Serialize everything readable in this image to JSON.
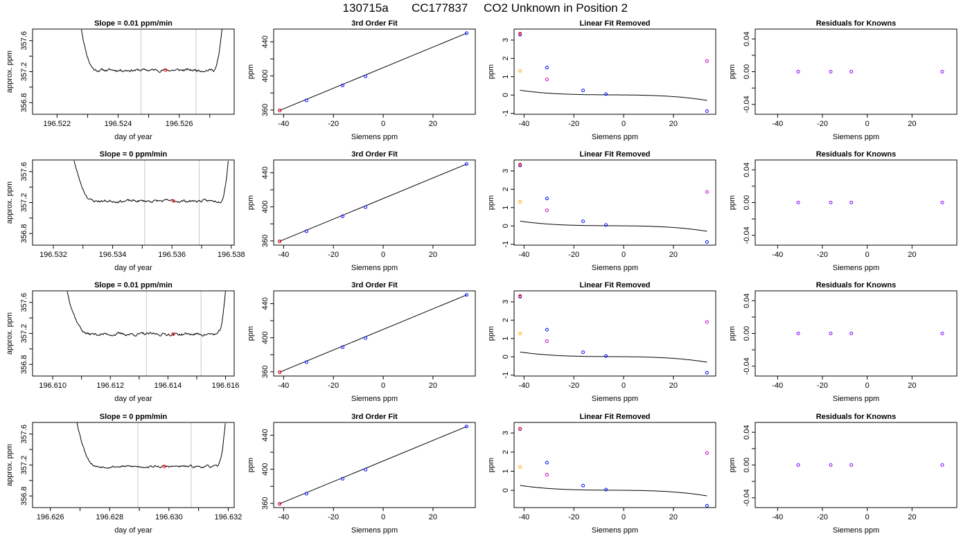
{
  "figure": {
    "title_parts": [
      "130715a",
      "CC177837",
      "CO2 Unknown in Position  2"
    ]
  },
  "colors": {
    "line": "#000000",
    "marker_vline": "#c8c8c8",
    "known": "#0000ff",
    "unknown": "#ff0000",
    "linear_resid_unknown": "#ffa500",
    "linear_resid_known": "#cc00cc",
    "residual_known": "#8000ff"
  },
  "chart_data": [
    {
      "type": "line",
      "panel": "trace",
      "row": 0,
      "title": "Slope =  0.01  ppm/min",
      "xlabel": "day of year",
      "ylabel": "approx. ppm",
      "xlim": [
        196.5212,
        196.5278
      ],
      "ylim": [
        356.65,
        357.75
      ],
      "xticks": [
        196.522,
        196.523,
        196.524,
        196.525,
        196.526,
        196.527
      ],
      "xtick_labels": [
        "196.522",
        "",
        "196.524",
        "",
        "196.526",
        ""
      ],
      "yticks": [
        356.8,
        357.0,
        357.2,
        357.4,
        357.6
      ],
      "ytick_labels": [
        "356.8",
        "",
        "357.2",
        "",
        "357.6"
      ],
      "trace": {
        "x_start": 196.5228,
        "x_flat_start": 196.5233,
        "x_flat_end": 196.5271,
        "x_end": 196.5274,
        "start_level": 357.75,
        "level": 357.22,
        "noise": 0.012,
        "seed": 11
      },
      "vlines": [
        196.52475,
        196.52655
      ],
      "unknown_point": {
        "x": 196.52555,
        "y": 357.22
      }
    },
    {
      "type": "scatter",
      "panel": "fit",
      "row": 0,
      "title": "3rd Order Fit",
      "xlabel": "Siemens ppm",
      "ylabel": "ppm",
      "xlim": [
        -44,
        37
      ],
      "ylim": [
        355,
        455
      ],
      "xticks": [
        -40,
        -20,
        0,
        20
      ],
      "xtick_labels": [
        "-40",
        "-20",
        "0",
        "20"
      ],
      "yticks": [
        360,
        380,
        400,
        420,
        440
      ],
      "ytick_labels": [
        "360",
        "",
        "400",
        "",
        "440"
      ],
      "knowns": [
        {
          "x": -41.6,
          "y": 359.5
        },
        {
          "x": -30.8,
          "y": 371.3
        },
        {
          "x": -16.3,
          "y": 388.9
        },
        {
          "x": -7.1,
          "y": 399.5
        },
        {
          "x": 33.5,
          "y": 450.2
        }
      ],
      "unknown": {
        "x": -41.6,
        "y": 359.4
      }
    },
    {
      "type": "scatter",
      "panel": "linear_removed",
      "row": 0,
      "title": "Linear Fit Removed",
      "xlabel": "Siemens ppm",
      "ylabel": "ppm",
      "xlim": [
        -44,
        37
      ],
      "ylim": [
        -1.05,
        3.6
      ],
      "xticks": [
        -40,
        -20,
        0,
        20
      ],
      "xtick_labels": [
        "-40",
        "-20",
        "0",
        "20"
      ],
      "yticks": [
        -1,
        0,
        1,
        2,
        3
      ],
      "ytick_labels": [
        "-1",
        "0",
        "1",
        "2",
        "3"
      ],
      "cubic": [
        0.005,
        -0.00113,
        -7.5e-05,
        -4.7e-06
      ],
      "knowns": [
        {
          "x": -41.6,
          "y": 3.3
        },
        {
          "x": -30.8,
          "y": 1.5
        },
        {
          "x": -16.3,
          "y": 0.25
        },
        {
          "x": -7.1,
          "y": 0.05
        },
        {
          "x": 33.5,
          "y": -0.88
        }
      ],
      "unknown": {
        "x": -41.6,
        "y": 3.35
      },
      "linear_resid_unknown": {
        "x": -41.6,
        "y": 1.32
      },
      "linear_resid_knowns": [
        {
          "x": -30.8,
          "y": 0.85
        },
        {
          "x": 33.5,
          "y": 1.85
        }
      ]
    },
    {
      "type": "scatter",
      "panel": "residuals",
      "row": 0,
      "title": "Residuals for Knowns",
      "xlabel": "Siemens ppm",
      "ylabel": "ppm",
      "xlim": [
        -50,
        40
      ],
      "ylim": [
        -0.052,
        0.052
      ],
      "xticks": [
        -40,
        -20,
        0,
        20
      ],
      "xtick_labels": [
        "-40",
        "-20",
        "0",
        "20"
      ],
      "yticks": [
        -0.04,
        0.0,
        0.04
      ],
      "ytick_labels": [
        "-0.04",
        "0.00",
        "0.04"
      ],
      "minor_yticks": [
        -0.02,
        0.02
      ],
      "knowns": [
        {
          "x": -30.8,
          "y": 0.0
        },
        {
          "x": -16.3,
          "y": 0.0
        },
        {
          "x": -7.1,
          "y": 0.0
        },
        {
          "x": 33.5,
          "y": 0.0
        }
      ]
    },
    {
      "type": "line",
      "panel": "trace",
      "row": 1,
      "title": "Slope =  0  ppm/min",
      "xlabel": "day of year",
      "ylabel": "approx. ppm",
      "xlim": [
        196.5313,
        196.5381
      ],
      "ylim": [
        356.65,
        357.75
      ],
      "xticks": [
        196.532,
        196.533,
        196.534,
        196.535,
        196.536,
        196.537,
        196.538
      ],
      "xtick_labels": [
        "196.532",
        "",
        "196.534",
        "",
        "196.536",
        "",
        "196.538"
      ],
      "yticks": [
        356.8,
        357.0,
        357.2,
        357.4,
        357.6
      ],
      "ytick_labels": [
        "356.8",
        "",
        "357.2",
        "",
        "357.6"
      ],
      "trace": {
        "x_start": 196.5327,
        "x_flat_start": 196.5334,
        "x_flat_end": 196.5376,
        "x_end": 196.5379,
        "start_level": 357.75,
        "level": 357.22,
        "noise": 0.012,
        "seed": 23
      },
      "vlines": [
        196.53508,
        196.53692
      ],
      "unknown_point": {
        "x": 196.53605,
        "y": 357.22
      }
    },
    {
      "type": "scatter",
      "panel": "fit",
      "row": 1,
      "title": "3rd Order Fit",
      "xlabel": "Siemens ppm",
      "ylabel": "ppm",
      "xlim": [
        -44,
        37
      ],
      "ylim": [
        355,
        455
      ],
      "xticks": [
        -40,
        -20,
        0,
        20
      ],
      "xtick_labels": [
        "-40",
        "-20",
        "0",
        "20"
      ],
      "yticks": [
        360,
        380,
        400,
        420,
        440
      ],
      "ytick_labels": [
        "360",
        "",
        "400",
        "",
        "440"
      ],
      "knowns": [
        {
          "x": -41.6,
          "y": 359.5
        },
        {
          "x": -30.8,
          "y": 371.3
        },
        {
          "x": -16.3,
          "y": 388.9
        },
        {
          "x": -7.1,
          "y": 399.5
        },
        {
          "x": 33.5,
          "y": 450.2
        }
      ],
      "unknown": {
        "x": -41.6,
        "y": 359.4
      }
    },
    {
      "type": "scatter",
      "panel": "linear_removed",
      "row": 1,
      "title": "Linear Fit Removed",
      "xlabel": "Siemens ppm",
      "ylabel": "ppm",
      "xlim": [
        -44,
        37
      ],
      "ylim": [
        -1.05,
        3.6
      ],
      "xticks": [
        -40,
        -20,
        0,
        20
      ],
      "xtick_labels": [
        "-40",
        "-20",
        "0",
        "20"
      ],
      "yticks": [
        -1,
        0,
        1,
        2,
        3
      ],
      "ytick_labels": [
        "-1",
        "0",
        "1",
        "2",
        "3"
      ],
      "cubic": [
        0.005,
        -0.00113,
        -7.5e-05,
        -4.7e-06
      ],
      "knowns": [
        {
          "x": -41.6,
          "y": 3.3
        },
        {
          "x": -30.8,
          "y": 1.5
        },
        {
          "x": -16.3,
          "y": 0.25
        },
        {
          "x": -7.1,
          "y": 0.05
        },
        {
          "x": 33.5,
          "y": -0.88
        }
      ],
      "unknown": {
        "x": -41.6,
        "y": 3.35
      },
      "linear_resid_unknown": {
        "x": -41.6,
        "y": 1.32
      },
      "linear_resid_knowns": [
        {
          "x": -30.8,
          "y": 0.85
        },
        {
          "x": 33.5,
          "y": 1.85
        }
      ]
    },
    {
      "type": "scatter",
      "panel": "residuals",
      "row": 1,
      "title": "Residuals for Knowns",
      "xlabel": "Siemens ppm",
      "ylabel": "ppm",
      "xlim": [
        -50,
        40
      ],
      "ylim": [
        -0.052,
        0.052
      ],
      "xticks": [
        -40,
        -20,
        0,
        20
      ],
      "xtick_labels": [
        "-40",
        "-20",
        "0",
        "20"
      ],
      "yticks": [
        -0.04,
        0.0,
        0.04
      ],
      "ytick_labels": [
        "-0.04",
        "0.00",
        "0.04"
      ],
      "minor_yticks": [
        -0.02,
        0.02
      ],
      "knowns": [
        {
          "x": -30.8,
          "y": 0.0
        },
        {
          "x": -16.3,
          "y": 0.0
        },
        {
          "x": -7.1,
          "y": 0.0
        },
        {
          "x": 33.5,
          "y": 0.0
        }
      ]
    },
    {
      "type": "line",
      "panel": "trace",
      "row": 2,
      "title": "Slope =  0.01  ppm/min",
      "xlabel": "day of year",
      "ylabel": "approx. ppm",
      "xlim": [
        196.6093,
        196.6163
      ],
      "ylim": [
        356.65,
        357.75
      ],
      "xticks": [
        196.61,
        196.611,
        196.612,
        196.613,
        196.614,
        196.615,
        196.616
      ],
      "xtick_labels": [
        "196.610",
        "",
        "196.612",
        "",
        "196.614",
        "",
        "196.616"
      ],
      "yticks": [
        356.8,
        357.0,
        357.2,
        357.4,
        357.6
      ],
      "ytick_labels": [
        "356.8",
        "",
        "357.2",
        "",
        "357.6"
      ],
      "trace": {
        "x_start": 196.6105,
        "x_flat_start": 196.6113,
        "x_flat_end": 196.6157,
        "x_end": 196.616,
        "start_level": 357.75,
        "level": 357.19,
        "noise": 0.013,
        "seed": 37
      },
      "vlines": [
        196.61325,
        196.61515
      ],
      "unknown_point": {
        "x": 196.61418,
        "y": 357.19
      }
    },
    {
      "type": "scatter",
      "panel": "fit",
      "row": 2,
      "title": "3rd Order Fit",
      "xlabel": "Siemens ppm",
      "ylabel": "ppm",
      "xlim": [
        -44,
        37
      ],
      "ylim": [
        355,
        455
      ],
      "xticks": [
        -40,
        -20,
        0,
        20
      ],
      "xtick_labels": [
        "-40",
        "-20",
        "0",
        "20"
      ],
      "yticks": [
        360,
        380,
        400,
        420,
        440
      ],
      "ytick_labels": [
        "360",
        "",
        "400",
        "",
        "440"
      ],
      "knowns": [
        {
          "x": -41.6,
          "y": 359.5
        },
        {
          "x": -30.8,
          "y": 371.3
        },
        {
          "x": -16.3,
          "y": 388.9
        },
        {
          "x": -7.1,
          "y": 399.5
        },
        {
          "x": 33.5,
          "y": 450.2
        }
      ],
      "unknown": {
        "x": -41.6,
        "y": 359.4
      }
    },
    {
      "type": "scatter",
      "panel": "linear_removed",
      "row": 2,
      "title": "Linear Fit Removed",
      "xlabel": "Siemens ppm",
      "ylabel": "ppm",
      "xlim": [
        -44,
        37
      ],
      "ylim": [
        -1.05,
        3.6
      ],
      "xticks": [
        -40,
        -20,
        0,
        20
      ],
      "xtick_labels": [
        "-40",
        "-20",
        "0",
        "20"
      ],
      "yticks": [
        -1,
        0,
        1,
        2,
        3
      ],
      "ytick_labels": [
        "-1",
        "0",
        "1",
        "2",
        "3"
      ],
      "cubic": [
        0.005,
        -0.00113,
        -7.5e-05,
        -4.7e-06
      ],
      "knowns": [
        {
          "x": -41.6,
          "y": 3.28
        },
        {
          "x": -30.8,
          "y": 1.48
        },
        {
          "x": -16.3,
          "y": 0.25
        },
        {
          "x": -7.1,
          "y": 0.04
        },
        {
          "x": 33.5,
          "y": -0.87
        }
      ],
      "unknown": {
        "x": -41.6,
        "y": 3.32
      },
      "linear_resid_unknown": {
        "x": -41.6,
        "y": 1.27
      },
      "linear_resid_knowns": [
        {
          "x": -30.8,
          "y": 0.85
        },
        {
          "x": 33.5,
          "y": 1.9
        }
      ]
    },
    {
      "type": "scatter",
      "panel": "residuals",
      "row": 2,
      "title": "Residuals for Knowns",
      "xlabel": "Siemens ppm",
      "ylabel": "ppm",
      "xlim": [
        -50,
        40
      ],
      "ylim": [
        -0.052,
        0.052
      ],
      "xticks": [
        -40,
        -20,
        0,
        20
      ],
      "xtick_labels": [
        "-40",
        "-20",
        "0",
        "20"
      ],
      "yticks": [
        -0.04,
        0.0,
        0.04
      ],
      "ytick_labels": [
        "-0.04",
        "0.00",
        "0.04"
      ],
      "minor_yticks": [
        -0.02,
        0.02
      ],
      "knowns": [
        {
          "x": -30.8,
          "y": 0.0
        },
        {
          "x": -16.3,
          "y": 0.0
        },
        {
          "x": -7.1,
          "y": 0.0
        },
        {
          "x": 33.5,
          "y": 0.0
        }
      ]
    },
    {
      "type": "line",
      "panel": "trace",
      "row": 3,
      "title": "Slope =  0  ppm/min",
      "xlabel": "day of year",
      "ylabel": "approx. ppm",
      "xlim": [
        196.6254,
        196.6322
      ],
      "ylim": [
        356.65,
        357.75
      ],
      "xticks": [
        196.626,
        196.627,
        196.628,
        196.629,
        196.63,
        196.631,
        196.632
      ],
      "xtick_labels": [
        "196.626",
        "",
        "196.628",
        "",
        "196.630",
        "",
        "196.632"
      ],
      "yticks": [
        356.8,
        357.0,
        357.2,
        357.4,
        357.6
      ],
      "ytick_labels": [
        "356.8",
        "",
        "357.2",
        "",
        "357.6"
      ],
      "trace": {
        "x_start": 196.6269,
        "x_flat_start": 196.6276,
        "x_flat_end": 196.6316,
        "x_end": 196.6319,
        "start_level": 357.75,
        "level": 357.18,
        "noise": 0.01,
        "seed": 53
      },
      "vlines": [
        196.62895,
        196.63075
      ],
      "unknown_point": {
        "x": 196.62985,
        "y": 357.18
      }
    },
    {
      "type": "scatter",
      "panel": "fit",
      "row": 3,
      "title": "3rd Order Fit",
      "xlabel": "Siemens ppm",
      "ylabel": "ppm",
      "xlim": [
        -44,
        37
      ],
      "ylim": [
        355,
        455
      ],
      "xticks": [
        -40,
        -20,
        0,
        20
      ],
      "xtick_labels": [
        "-40",
        "-20",
        "0",
        "20"
      ],
      "yticks": [
        360,
        380,
        400,
        420,
        440
      ],
      "ytick_labels": [
        "360",
        "",
        "400",
        "",
        "440"
      ],
      "knowns": [
        {
          "x": -41.6,
          "y": 359.5
        },
        {
          "x": -30.8,
          "y": 371.3
        },
        {
          "x": -16.3,
          "y": 388.9
        },
        {
          "x": -7.1,
          "y": 399.5
        },
        {
          "x": 33.5,
          "y": 450.2
        }
      ],
      "unknown": {
        "x": -41.6,
        "y": 359.4
      }
    },
    {
      "type": "scatter",
      "panel": "linear_removed",
      "row": 3,
      "title": "Linear Fit Removed",
      "xlabel": "Siemens ppm",
      "ylabel": "ppm",
      "xlim": [
        -44,
        37
      ],
      "ylim": [
        -0.9,
        3.55
      ],
      "xticks": [
        -40,
        -20,
        0,
        20
      ],
      "xtick_labels": [
        "-40",
        "-20",
        "0",
        "20"
      ],
      "yticks": [
        0,
        1,
        2,
        3
      ],
      "ytick_labels": [
        "0",
        "1",
        "2",
        "3"
      ],
      "cubic": [
        0.005,
        -0.00113,
        -7.2e-05,
        -4.6e-06
      ],
      "knowns": [
        {
          "x": -41.6,
          "y": 3.2
        },
        {
          "x": -30.8,
          "y": 1.45
        },
        {
          "x": -16.3,
          "y": 0.25
        },
        {
          "x": -7.1,
          "y": 0.04
        },
        {
          "x": 33.5,
          "y": -0.8
        }
      ],
      "unknown": {
        "x": -41.6,
        "y": 3.22
      },
      "linear_resid_unknown": {
        "x": -41.6,
        "y": 1.22
      },
      "linear_resid_knowns": [
        {
          "x": -30.8,
          "y": 0.82
        },
        {
          "x": 33.5,
          "y": 1.95
        }
      ]
    },
    {
      "type": "scatter",
      "panel": "residuals",
      "row": 3,
      "title": "Residuals for Knowns",
      "xlabel": "Siemens ppm",
      "ylabel": "ppm",
      "xlim": [
        -50,
        40
      ],
      "ylim": [
        -0.052,
        0.052
      ],
      "xticks": [
        -40,
        -20,
        0,
        20
      ],
      "xtick_labels": [
        "-40",
        "-20",
        "0",
        "20"
      ],
      "yticks": [
        -0.04,
        0.0,
        0.04
      ],
      "ytick_labels": [
        "-0.04",
        "0.00",
        "0.04"
      ],
      "minor_yticks": [
        -0.02,
        0.02
      ],
      "knowns": [
        {
          "x": -30.8,
          "y": 0.0
        },
        {
          "x": -16.3,
          "y": 0.0
        },
        {
          "x": -7.1,
          "y": 0.0
        },
        {
          "x": 33.5,
          "y": 0.0
        }
      ]
    }
  ]
}
